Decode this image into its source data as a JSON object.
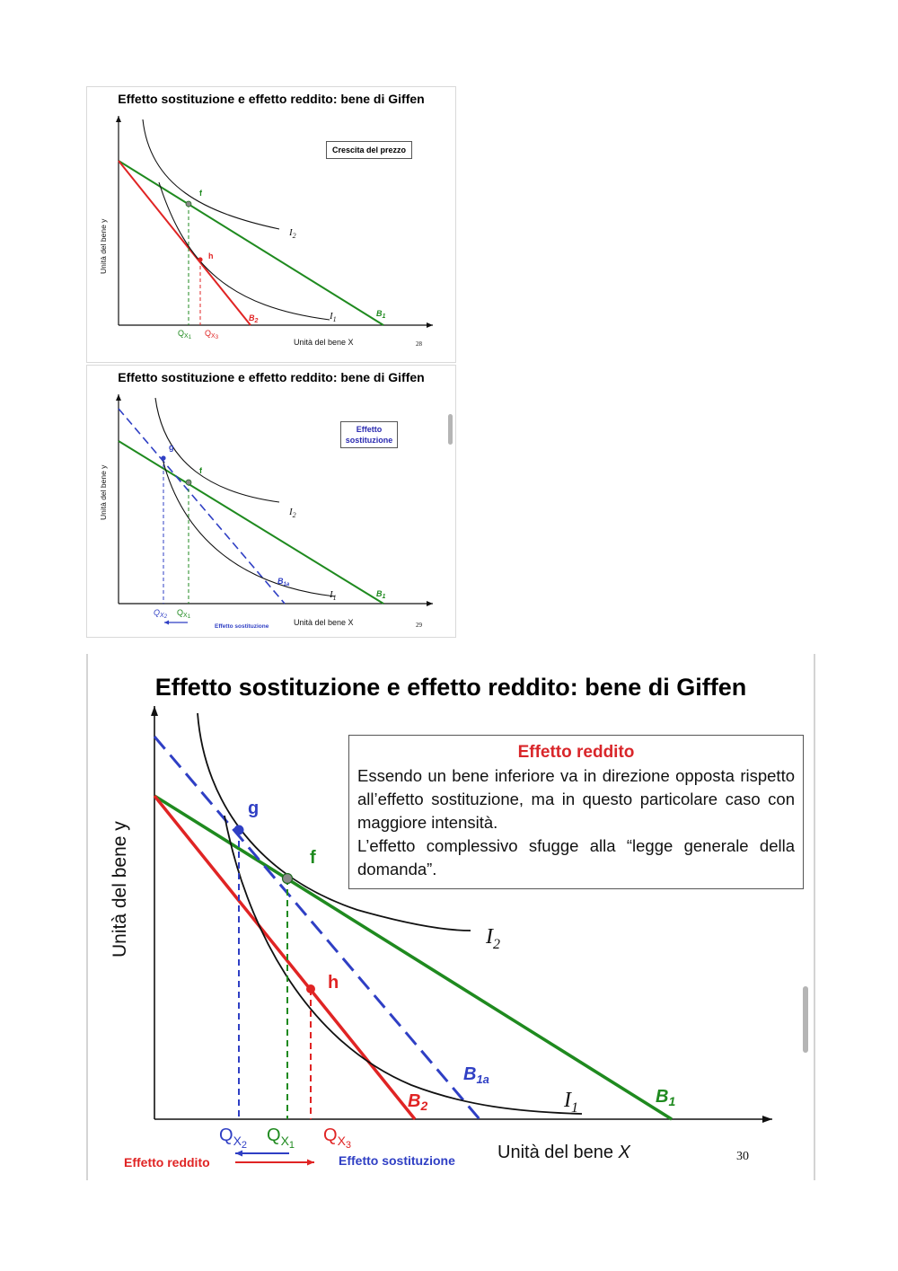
{
  "colors": {
    "green": "#1f8a1f",
    "red": "#e02424",
    "blue": "#2f3fc4",
    "black": "#111111"
  },
  "slides": [
    {
      "title": "Effetto sostituzione e effetto reddito: bene di Giffen",
      "callout": "Crescita del prezzo",
      "y_axis": "Unità del bene y",
      "x_axis": "Unità del bene X",
      "page": "28",
      "labels": {
        "f": "f",
        "h": "h",
        "I2": "I",
        "I2_sub": "2",
        "I1": "I",
        "I1_sub": "1",
        "B1": "B",
        "B1_sub": "1",
        "B2": "B",
        "B2_sub": "2",
        "QX1": "Q",
        "QX1_sub": "X",
        "QX1_subsub": "1",
        "QX3": "Q",
        "QX3_sub": "X",
        "QX3_subsub": "3"
      }
    },
    {
      "title": "Effetto sostituzione e effetto reddito: bene di Giffen",
      "callout_line1": "Effetto",
      "callout_line2": "sostituzione",
      "y_axis": "Unità del bene y",
      "x_axis": "Unità del bene X",
      "page": "29",
      "arrow_caption": "Effetto sostituzione",
      "labels": {
        "g": "g",
        "f": "f",
        "I2": "I",
        "I2_sub": "2",
        "I1": "I",
        "I1_sub": "1",
        "B1": "B",
        "B1_sub": "1",
        "B1a": "B",
        "B1a_sub": "1a",
        "QX2": "Q",
        "QX2_sub": "X",
        "QX2_subsub": "2",
        "QX1": "Q",
        "QX1_sub": "X",
        "QX1_subsub": "1"
      }
    },
    {
      "title": "Effetto sostituzione e effetto reddito: bene di Giffen",
      "callout_title": "Effetto reddito",
      "callout_p1": "Essendo un bene inferiore va in direzione opposta rispetto all’effetto sostituzione, ma in questo particolare caso con maggiore intensità.",
      "callout_p2": "L’effetto complessivo sfugge alla “legge generale della domanda”.",
      "y_axis": "Unità del bene y",
      "x_axis_prefix": "Unità del bene ",
      "x_axis_var": "X",
      "page": "30",
      "income_caption": "Effetto reddito",
      "substitution_caption": "Effetto sostituzione",
      "labels": {
        "g": "g",
        "f": "f",
        "h": "h",
        "I2": "I",
        "I2_sub": "2",
        "I1": "I",
        "I1_sub": "1",
        "B1": "B",
        "B1_sub": "1",
        "B1a": "B",
        "B1a_sub": "1a",
        "B2": "B",
        "B2_sub": "2",
        "QX2": "Q",
        "QX2_sub": "X",
        "QX2_subsub": "2",
        "QX1": "Q",
        "QX1_sub": "X",
        "QX1_subsub": "1",
        "QX3": "Q",
        "QX3_sub": "X",
        "QX3_subsub": "3"
      }
    }
  ]
}
